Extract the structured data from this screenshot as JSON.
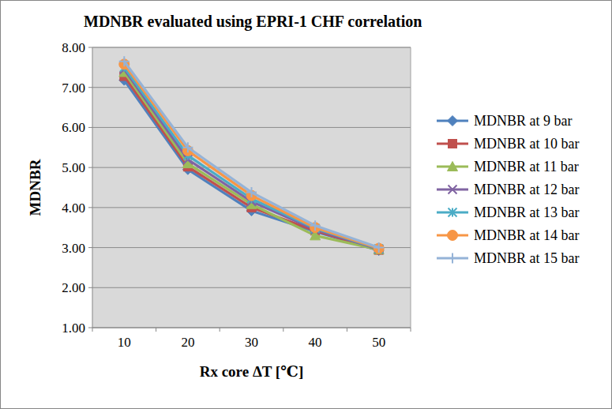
{
  "chart_data": {
    "type": "line",
    "title": "MDNBR evaluated using EPRI-1 CHF correlation",
    "x_label": "Rx core ΔT [℃]",
    "y_label": "MDNBR",
    "categories": [
      "10",
      "20",
      "30",
      "40",
      "50"
    ],
    "ylim": [
      1,
      8
    ],
    "yticks": [
      {
        "value": 1,
        "label": "1.00"
      },
      {
        "value": 2,
        "label": "2.00"
      },
      {
        "value": 3,
        "label": "3.00"
      },
      {
        "value": 4,
        "label": "4.00"
      },
      {
        "value": 5,
        "label": "5.00"
      },
      {
        "value": 6,
        "label": "6.00"
      },
      {
        "value": 7,
        "label": "7.00"
      },
      {
        "value": 8,
        "label": "8.00"
      }
    ],
    "grid": true,
    "legend": "right",
    "series": [
      {
        "name": "MDNBR at 9 bar",
        "color": "#4f81bd",
        "marker": "diamond",
        "values": [
          7.18,
          4.95,
          3.92,
          3.4,
          2.93
        ]
      },
      {
        "name": "MDNBR at 10 bar",
        "color": "#c0504d",
        "marker": "square",
        "values": [
          7.28,
          5.02,
          4.0,
          3.42,
          2.94
        ]
      },
      {
        "name": "MDNBR at 11 bar",
        "color": "#9bbb59",
        "marker": "triangle",
        "values": [
          7.38,
          5.1,
          4.08,
          3.3,
          2.95
        ]
      },
      {
        "name": "MDNBR at 12 bar",
        "color": "#8064a2",
        "marker": "x",
        "values": [
          7.45,
          5.2,
          4.15,
          3.45,
          2.96
        ]
      },
      {
        "name": "MDNBR at 13 bar",
        "color": "#4bacc6",
        "marker": "star",
        "values": [
          7.5,
          5.3,
          4.22,
          3.48,
          2.97
        ]
      },
      {
        "name": "MDNBR at 14 bar",
        "color": "#f79646",
        "marker": "circle",
        "values": [
          7.58,
          5.42,
          4.3,
          3.5,
          2.98
        ]
      },
      {
        "name": "MDNBR at 15 bar",
        "color": "#95b3d7",
        "marker": "plus",
        "values": [
          7.65,
          5.5,
          4.38,
          3.55,
          3.0
        ]
      }
    ]
  }
}
